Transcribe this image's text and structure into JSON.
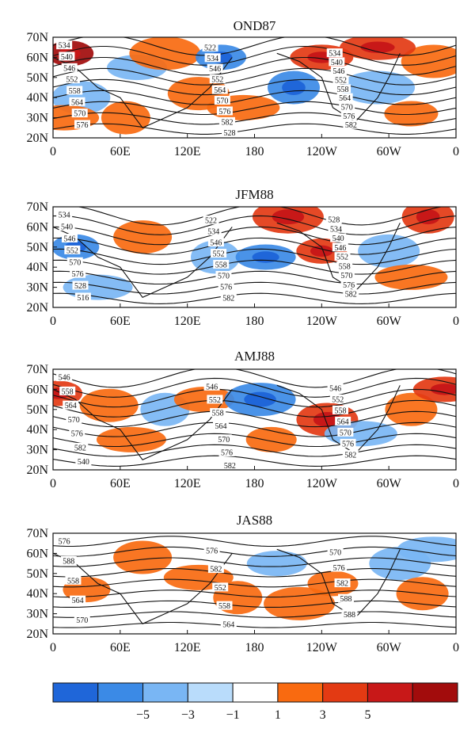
{
  "chart_data": {
    "type": "heatmap",
    "panels": [
      {
        "title": "OND87",
        "contour_labels": [
          "534",
          "540",
          "546",
          "552",
          "558",
          "564",
          "570",
          "576",
          "522",
          "534",
          "546",
          "552",
          "564",
          "570",
          "576",
          "582",
          "528",
          "534",
          "540",
          "546",
          "552",
          "558",
          "564",
          "570",
          "576",
          "582"
        ],
        "anomaly_blobs": [
          {
            "lon": 15,
            "lat": 62,
            "sign": "pos",
            "level": 3
          },
          {
            "lon": 25,
            "lat": 40,
            "sign": "neg",
            "level": 1
          },
          {
            "lon": 10,
            "lat": 30,
            "sign": "pos",
            "level": 1
          },
          {
            "lon": 65,
            "lat": 30,
            "sign": "pos",
            "level": 1
          },
          {
            "lon": 75,
            "lat": 55,
            "sign": "neg",
            "level": 1
          },
          {
            "lon": 100,
            "lat": 62,
            "sign": "pos",
            "level": 1
          },
          {
            "lon": 150,
            "lat": 60,
            "sign": "neg",
            "level": 2
          },
          {
            "lon": 130,
            "lat": 42,
            "sign": "pos",
            "level": 1
          },
          {
            "lon": 170,
            "lat": 35,
            "sign": "pos",
            "level": 1
          },
          {
            "lon": 215,
            "lat": 45,
            "sign": "neg",
            "level": 2
          },
          {
            "lon": 240,
            "lat": 60,
            "sign": "pos",
            "level": 2
          },
          {
            "lon": 290,
            "lat": 45,
            "sign": "neg",
            "level": 1
          },
          {
            "lon": 320,
            "lat": 32,
            "sign": "pos",
            "level": 1
          },
          {
            "lon": 340,
            "lat": 58,
            "sign": "pos",
            "level": 1
          },
          {
            "lon": 290,
            "lat": 65,
            "sign": "pos",
            "level": 2
          }
        ]
      },
      {
        "title": "JFM88",
        "contour_labels": [
          "534",
          "540",
          "546",
          "552",
          "570",
          "576",
          "528",
          "516",
          "522",
          "534",
          "546",
          "552",
          "558",
          "570",
          "576",
          "582",
          "528",
          "534",
          "540",
          "546",
          "552",
          "558",
          "570",
          "576",
          "582"
        ],
        "anomaly_blobs": [
          {
            "lon": 20,
            "lat": 50,
            "sign": "neg",
            "level": 2
          },
          {
            "lon": 80,
            "lat": 55,
            "sign": "pos",
            "level": 1
          },
          {
            "lon": 40,
            "lat": 30,
            "sign": "neg",
            "level": 1
          },
          {
            "lon": 145,
            "lat": 45,
            "sign": "neg",
            "level": 1
          },
          {
            "lon": 190,
            "lat": 45,
            "sign": "neg",
            "level": 2
          },
          {
            "lon": 210,
            "lat": 65,
            "sign": "pos",
            "level": 2
          },
          {
            "lon": 240,
            "lat": 48,
            "sign": "pos",
            "level": 2
          },
          {
            "lon": 300,
            "lat": 48,
            "sign": "neg",
            "level": 1
          },
          {
            "lon": 320,
            "lat": 35,
            "sign": "pos",
            "level": 1
          },
          {
            "lon": 335,
            "lat": 65,
            "sign": "pos",
            "level": 2
          }
        ]
      },
      {
        "title": "AMJ88",
        "contour_labels": [
          "546",
          "558",
          "564",
          "570",
          "576",
          "582",
          "540",
          "546",
          "552",
          "558",
          "564",
          "570",
          "576",
          "582",
          "546",
          "552",
          "558",
          "564",
          "570",
          "576",
          "582"
        ],
        "anomaly_blobs": [
          {
            "lon": 5,
            "lat": 58,
            "sign": "pos",
            "level": 2
          },
          {
            "lon": 50,
            "lat": 52,
            "sign": "pos",
            "level": 1
          },
          {
            "lon": 70,
            "lat": 35,
            "sign": "pos",
            "level": 1
          },
          {
            "lon": 100,
            "lat": 50,
            "sign": "neg",
            "level": 1
          },
          {
            "lon": 135,
            "lat": 55,
            "sign": "pos",
            "level": 1
          },
          {
            "lon": 185,
            "lat": 55,
            "sign": "neg",
            "level": 2
          },
          {
            "lon": 195,
            "lat": 35,
            "sign": "pos",
            "level": 1
          },
          {
            "lon": 245,
            "lat": 45,
            "sign": "pos",
            "level": 2
          },
          {
            "lon": 275,
            "lat": 38,
            "sign": "neg",
            "level": 1
          },
          {
            "lon": 320,
            "lat": 50,
            "sign": "pos",
            "level": 1
          },
          {
            "lon": 350,
            "lat": 60,
            "sign": "pos",
            "level": 2
          }
        ]
      },
      {
        "title": "JAS88",
        "contour_labels": [
          "576",
          "588",
          "558",
          "564",
          "570",
          "576",
          "582",
          "552",
          "558",
          "564",
          "570",
          "576",
          "582",
          "588",
          "588"
        ],
        "anomaly_blobs": [
          {
            "lon": 30,
            "lat": 42,
            "sign": "pos",
            "level": 1
          },
          {
            "lon": 80,
            "lat": 58,
            "sign": "pos",
            "level": 1
          },
          {
            "lon": 130,
            "lat": 48,
            "sign": "pos",
            "level": 1
          },
          {
            "lon": 165,
            "lat": 38,
            "sign": "pos",
            "level": 1
          },
          {
            "lon": 200,
            "lat": 55,
            "sign": "neg",
            "level": 1
          },
          {
            "lon": 220,
            "lat": 35,
            "sign": "pos",
            "level": 1
          },
          {
            "lon": 250,
            "lat": 45,
            "sign": "pos",
            "level": 1
          },
          {
            "lon": 310,
            "lat": 55,
            "sign": "neg",
            "level": 1
          },
          {
            "lon": 340,
            "lat": 62,
            "sign": "neg",
            "level": 1
          },
          {
            "lon": 330,
            "lat": 40,
            "sign": "pos",
            "level": 1
          }
        ]
      }
    ],
    "x_ticks": [
      "0",
      "60E",
      "120E",
      "180",
      "120W",
      "60W",
      "0"
    ],
    "y_ticks": [
      "70N",
      "60N",
      "50N",
      "40N",
      "30N",
      "20N"
    ],
    "xlim": [
      0,
      360
    ],
    "ylim": [
      20,
      70
    ],
    "colorbar": {
      "ticks": [
        "−5",
        "−3",
        "−1",
        "1",
        "3",
        "5"
      ],
      "colors": [
        "#1f66d9",
        "#3b8ae6",
        "#79b6f4",
        "#b9dcfb",
        "#ffffff",
        "#f96a10",
        "#e33a13",
        "#c81818",
        "#a20c0c"
      ]
    }
  }
}
